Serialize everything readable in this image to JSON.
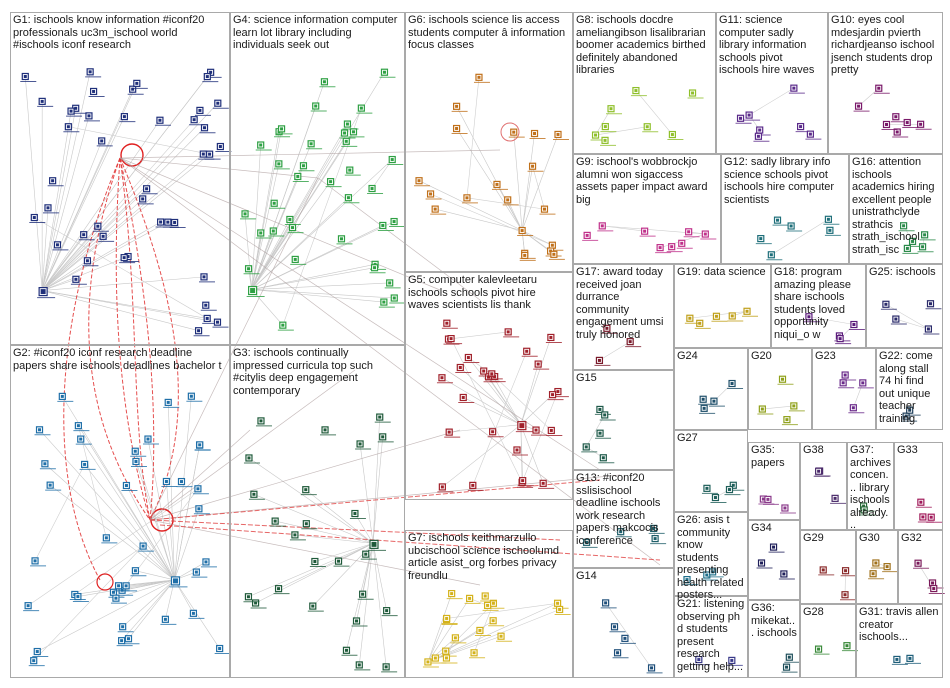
{
  "groups": [
    {
      "id": "G1",
      "label": "G1: ischools know information #iconf20 professionals uc3m_ischool world #ischools iconf research",
      "color": "#1f2f7a",
      "nodes": 44
    },
    {
      "id": "G2",
      "label": "G2: #iconf20 iconf research deadline papers share ischools deadlines bachelor t",
      "color": "#1f6fa8",
      "nodes": 42
    },
    {
      "id": "G3",
      "label": "G3: ischools continually impressed curricula top such #citylis deep engagement contemporary",
      "color": "#1f5a3a",
      "nodes": 26
    },
    {
      "id": "G4",
      "label": "G4: science information computer learn lot library including individuals seek out",
      "color": "#2ea043",
      "nodes": 38
    },
    {
      "id": "G5",
      "label": "G5: computer kalevleetaru ischools schools pivot hire waves scientists lis thank",
      "color": "#a0202a",
      "nodes": 28
    },
    {
      "id": "G6",
      "label": "G6: ischools science lis access students computer â information focus classes",
      "color": "#c0701a",
      "nodes": 20
    },
    {
      "id": "G7",
      "label": "G7: ischools keithmarzullo ubcischool science ischoolumd article asist_org forbes privacy freundlu",
      "color": "#d4b21a",
      "nodes": 18
    },
    {
      "id": "G8",
      "label": "G8: ischools docdre ameliangibson lisalibrarian boomer academics birthed definitely abandoned libraries",
      "color": "#8fbf2a",
      "nodes": 8
    },
    {
      "id": "G9",
      "label": "G9: ischool's wobbrockjo alumni won sigaccess assets paper impact award big",
      "color": "#c0308a",
      "nodes": 8
    },
    {
      "id": "G10",
      "label": "G10: eyes cool mdesjardin pvierth richardjeanso ischool jsench students drop pretty",
      "color": "#7a1a6a",
      "nodes": 7
    },
    {
      "id": "G11",
      "label": "G11: science computer sadly library information schools pivot ischools hire waves",
      "color": "#5a2a8a",
      "nodes": 7
    },
    {
      "id": "G12",
      "label": "G12: sadly library info science schools pivot ischools hire computer scientists",
      "color": "#1f6f7a",
      "nodes": 6
    },
    {
      "id": "G13",
      "label": "G13: #iconf20 sslisischool deadline ischools work research papers makcocis iconference",
      "color": "#1f5f6a",
      "nodes": 4
    },
    {
      "id": "G14",
      "label": "G14",
      "color": "#1f4f7a",
      "nodes": 5
    },
    {
      "id": "G15",
      "label": "G15",
      "color": "#1f5a4a",
      "nodes": 5
    },
    {
      "id": "G16",
      "label": "G16: attention ischools academics hiring excellent people unistrathclyde strathcis strath_ischool strath_isc",
      "color": "#2a8a4a",
      "nodes": 5
    },
    {
      "id": "G17",
      "label": "G17: award today received joan durrance community engagement umsi truly honored",
      "color": "#7a1a2a",
      "nodes": 3
    },
    {
      "id": "G18",
      "label": "G18: program amazing please share ischools students loved opportunity niqui_o w",
      "color": "#5a1a7a",
      "nodes": 4
    },
    {
      "id": "G19",
      "label": "G19: data science",
      "color": "#c0a01a",
      "nodes": 5
    },
    {
      "id": "G20",
      "label": "G20",
      "color": "#8fa01a",
      "nodes": 4
    },
    {
      "id": "G21",
      "label": "G21: listening observing ph d students present research getting help...",
      "color": "#3a3a8a",
      "nodes": 2
    },
    {
      "id": "G22",
      "label": "G22: come along stall 74 hi find out unique teacher training",
      "color": "#1f3f5a",
      "nodes": 2
    },
    {
      "id": "G23",
      "label": "G23",
      "color": "#6a2a8a",
      "nodes": 4
    },
    {
      "id": "G24",
      "label": "G24",
      "color": "#1f4f6a",
      "nodes": 4
    },
    {
      "id": "G25",
      "label": "G25: ischools",
      "color": "#2a2a6a",
      "nodes": 4
    },
    {
      "id": "G26",
      "label": "G26: asis t community know students presenting health related posters...",
      "color": "#1f6f8a",
      "nodes": 3
    },
    {
      "id": "G27",
      "label": "G27",
      "color": "#1f5f5a",
      "nodes": 4
    },
    {
      "id": "G28",
      "label": "G28",
      "color": "#3a8a3a",
      "nodes": 2
    },
    {
      "id": "G29",
      "label": "G29",
      "color": "#8a2a2a",
      "nodes": 3
    },
    {
      "id": "G30",
      "label": "G30",
      "color": "#a0701a",
      "nodes": 3
    },
    {
      "id": "G31",
      "label": "G31: travis allen creator ischools...",
      "color": "#1f5f7a",
      "nodes": 2
    },
    {
      "id": "G32",
      "label": "G32",
      "color": "#7a1a5a",
      "nodes": 3
    },
    {
      "id": "G33",
      "label": "G33",
      "color": "#a01a5a",
      "nodes": 3
    },
    {
      "id": "G34",
      "label": "G34",
      "color": "#1f1f5a",
      "nodes": 3
    },
    {
      "id": "G35",
      "label": "G35: papers",
      "color": "#8a3a8a",
      "nodes": 3
    },
    {
      "id": "G36",
      "label": "G36: mikekat... ischools",
      "color": "#1f4f5a",
      "nodes": 2
    },
    {
      "id": "G37",
      "label": "G37: archives concen... library ischools already...",
      "color": "#2a6a3a",
      "nodes": 2
    },
    {
      "id": "G38",
      "label": "G38",
      "color": "#4a2a6a",
      "nodes": 3
    }
  ]
}
